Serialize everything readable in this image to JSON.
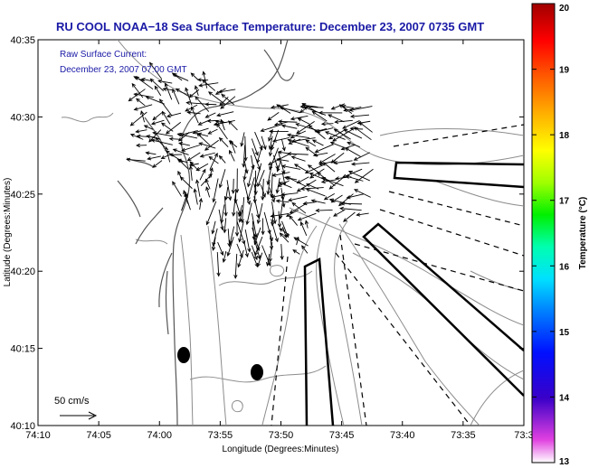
{
  "title": "RU COOL  NOAA−18  Sea Surface Temperature:  December 23, 2007 0735 GMT",
  "subtitle_line1": "Raw Surface Current:",
  "subtitle_line2": "December 23, 2007 07:00 GMT",
  "scale_label": "50 cm/s",
  "xlabel": "Longitude (Degrees:Minutes)",
  "ylabel": "Latitude (Degrees:Minutes)",
  "x_ticks": [
    "74:10",
    "74:05",
    "74:00",
    "73:55",
    "73:50",
    "73:45",
    "73:40",
    "73:35",
    "73:3"
  ],
  "y_ticks": [
    "40:35",
    "40:30",
    "40:25",
    "40:20",
    "40:15",
    "40:10"
  ],
  "colorbar": {
    "label": "Temperature (°C)",
    "min": 13,
    "max": 20,
    "ticks": [
      "20",
      "19",
      "18",
      "17",
      "16",
      "15",
      "14",
      "13"
    ]
  },
  "colors": {
    "title": "#1a1aa6",
    "contour": "#8c8c8c",
    "coast": "#555555",
    "arrow": "#000000"
  }
}
